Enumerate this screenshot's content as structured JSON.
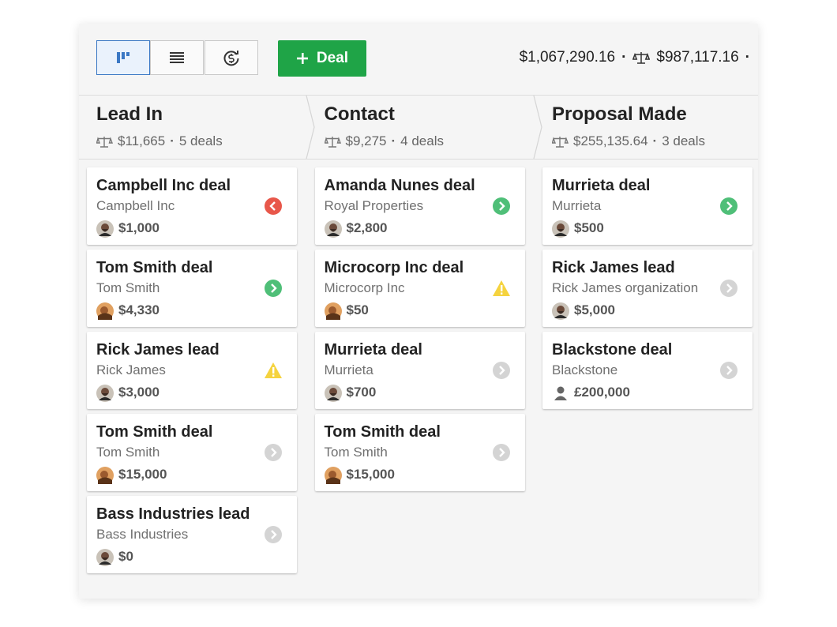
{
  "toolbar": {
    "add_button": "Deal",
    "total_value": "$1,067,290.16",
    "weighted_value": "$987,117.16"
  },
  "columns": [
    {
      "title": "Lead In",
      "value": "$11,665",
      "deal_count": "5 deals",
      "cards": [
        {
          "title": "Campbell Inc deal",
          "organization": "Campbell Inc",
          "value": "$1,000",
          "status": "overdue",
          "avatar": "man"
        },
        {
          "title": "Tom Smith deal",
          "organization": "Tom Smith",
          "value": "$4,330",
          "status": "scheduled",
          "avatar": "woman"
        },
        {
          "title": "Rick James lead",
          "organization": "Rick James",
          "value": "$3,000",
          "status": "warning",
          "avatar": "man"
        },
        {
          "title": "Tom Smith deal",
          "organization": "Tom Smith",
          "value": "$15,000",
          "status": "none",
          "avatar": "woman"
        },
        {
          "title": "Bass Industries lead",
          "organization": "Bass Industries",
          "value": "$0",
          "status": "none",
          "avatar": "man"
        }
      ]
    },
    {
      "title": "Contact",
      "value": "$9,275",
      "deal_count": "4 deals",
      "cards": [
        {
          "title": "Amanda Nunes deal",
          "organization": "Royal Properties",
          "value": "$2,800",
          "status": "scheduled",
          "avatar": "man"
        },
        {
          "title": "Microcorp Inc deal",
          "organization": "Microcorp Inc",
          "value": "$50",
          "status": "warning",
          "avatar": "woman"
        },
        {
          "title": "Murrieta deal",
          "organization": "Murrieta",
          "value": "$700",
          "status": "none",
          "avatar": "man"
        },
        {
          "title": "Tom Smith deal",
          "organization": "Tom Smith",
          "value": "$15,000",
          "status": "none",
          "avatar": "woman"
        }
      ]
    },
    {
      "title": "Proposal Made",
      "value": "$255,135.64",
      "deal_count": "3 deals",
      "cards": [
        {
          "title": "Murrieta deal",
          "organization": "Murrieta",
          "value": "$500",
          "status": "scheduled",
          "avatar": "man"
        },
        {
          "title": "Rick James lead",
          "organization": "Rick James organization",
          "value": "$5,000",
          "status": "none",
          "avatar": "man"
        },
        {
          "title": "Blackstone deal",
          "organization": "Blackstone",
          "value": "£200,000",
          "status": "none",
          "avatar": "none"
        }
      ]
    }
  ]
}
